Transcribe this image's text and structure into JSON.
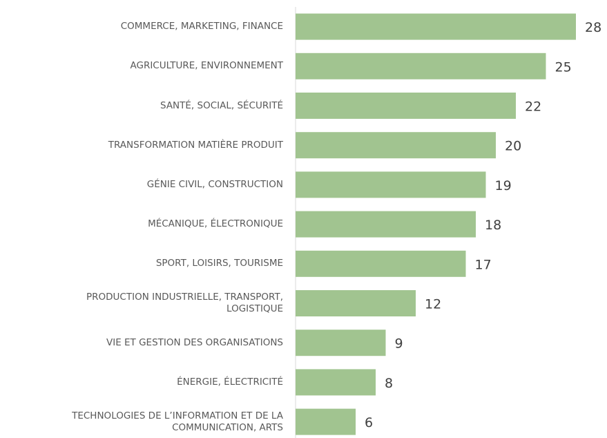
{
  "chart_data": {
    "type": "bar",
    "orientation": "horizontal",
    "categories": [
      "COMMERCE, MARKETING, FINANCE",
      "AGRICULTURE, ENVIRONNEMENT",
      "SANTÉ, SOCIAL, SÉCURITÉ",
      "TRANSFORMATION MATIÈRE PRODUIT",
      "GÉNIE CIVIL, CONSTRUCTION",
      "MÉCANIQUE, ÉLECTRONIQUE",
      "SPORT, LOISIRS, TOURISME",
      "PRODUCTION INDUSTRIELLE, TRANSPORT,\nLOGISTIQUE",
      "VIE ET GESTION DES ORGANISATIONS",
      "ÉNERGIE, ÉLECTRICITÉ",
      "TECHNOLOGIES DE L’INFORMATION ET DE LA\nCOMMUNICATION, ARTS"
    ],
    "values": [
      28,
      25,
      22,
      20,
      19,
      18,
      17,
      12,
      9,
      8,
      6
    ],
    "color": "#a1c490"
  }
}
